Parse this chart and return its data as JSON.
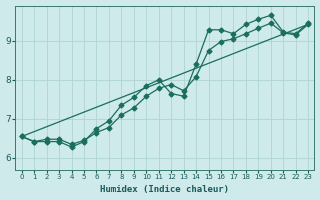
{
  "xlabel": "Humidex (Indice chaleur)",
  "bg_color": "#ceeaea",
  "grid_color": "#aed4d4",
  "line_color": "#1a6e5e",
  "xlim": [
    -0.5,
    23.5
  ],
  "ylim": [
    5.7,
    9.9
  ],
  "yticks": [
    6,
    7,
    8,
    9
  ],
  "xticks": [
    0,
    1,
    2,
    3,
    4,
    5,
    6,
    7,
    8,
    9,
    10,
    11,
    12,
    13,
    14,
    15,
    16,
    17,
    18,
    19,
    20,
    21,
    22,
    23
  ],
  "series1_x": [
    0,
    1,
    2,
    3,
    4,
    5,
    6,
    7,
    8,
    9,
    10,
    11,
    12,
    13,
    14,
    15,
    16,
    17,
    18,
    19,
    20,
    21,
    22,
    23
  ],
  "series1_y": [
    6.55,
    6.42,
    6.42,
    6.42,
    6.28,
    6.42,
    6.75,
    6.95,
    7.35,
    7.55,
    7.85,
    8.0,
    7.65,
    7.58,
    8.4,
    9.28,
    9.28,
    9.18,
    9.42,
    9.55,
    9.65,
    9.22,
    9.18,
    9.45
  ],
  "series2_x": [
    0,
    1,
    2,
    3,
    4,
    5,
    6,
    7,
    8,
    9,
    10,
    11,
    12,
    13,
    14,
    15,
    16,
    17,
    18,
    19,
    20,
    21,
    22,
    23
  ],
  "series2_y": [
    6.55,
    6.42,
    6.48,
    6.48,
    6.35,
    6.45,
    6.65,
    6.78,
    7.1,
    7.28,
    7.58,
    7.78,
    7.88,
    7.72,
    8.08,
    8.75,
    8.98,
    9.05,
    9.18,
    9.32,
    9.45,
    9.2,
    9.15,
    9.42
  ],
  "series3_x": [
    0,
    23
  ],
  "series3_y": [
    6.55,
    9.42
  ],
  "marker_size": 2.5,
  "line_width": 0.9
}
